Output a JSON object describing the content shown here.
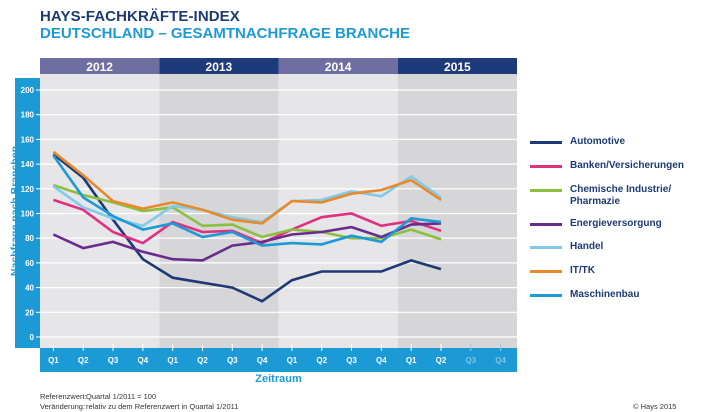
{
  "header": {
    "title": "HAYS-FACHKRÄFTE-INDEX",
    "subtitle": "DEUTSCHLAND – GESAMTNACHFRAGE BRANCHE"
  },
  "footer": {
    "ref_label": "Referenzwert:",
    "ref_value": "Quartal 1/2011 = 100",
    "change_label": "Veränderung:",
    "change_value": "relativ zu dem Referenzwert in Quartal 1/2011",
    "copyright": "© Hays 2015"
  },
  "chart_data": {
    "type": "line",
    "title": "HAYS-FACHKRÄFTE-INDEX — DEUTSCHLAND – GESAMTNACHFRAGE BRANCHE",
    "xlabel": "Zeitraum",
    "ylabel": "Nachfrage nach Branchen",
    "ylim": [
      0,
      200
    ],
    "yticks": [
      0,
      20,
      40,
      60,
      80,
      100,
      120,
      140,
      160,
      180,
      200
    ],
    "grid": true,
    "legend_position": "right",
    "years": [
      {
        "label": "2012",
        "color": "#6e6ea3"
      },
      {
        "label": "2013",
        "color": "#1d3a7a"
      },
      {
        "label": "2014",
        "color": "#6e6ea3"
      },
      {
        "label": "2015",
        "color": "#1d3a7a"
      }
    ],
    "categories": [
      "Q1",
      "Q2",
      "Q3",
      "Q4",
      "Q1",
      "Q2",
      "Q3",
      "Q4",
      "Q1",
      "Q2",
      "Q3",
      "Q4",
      "Q1",
      "Q2",
      "Q3",
      "Q4"
    ],
    "category_dimmed": [
      false,
      false,
      false,
      false,
      false,
      false,
      false,
      false,
      false,
      false,
      false,
      false,
      false,
      false,
      true,
      true
    ],
    "series": [
      {
        "name": "Automotive",
        "color": "#1d3a74",
        "values": [
          148,
          129,
          95,
          63,
          48,
          44,
          40,
          29,
          46,
          53,
          53,
          53,
          62,
          55,
          null,
          null
        ]
      },
      {
        "name": "Banken/Versicherungen",
        "color": "#e0307f",
        "values": [
          111,
          103,
          85,
          76,
          93,
          85,
          86,
          76,
          87,
          97,
          100,
          90,
          94,
          86,
          null,
          null
        ]
      },
      {
        "name": "Chemische Industrie/\nPharmazie",
        "color": "#8cbf3f",
        "values": [
          123,
          115,
          109,
          102,
          105,
          90,
          91,
          81,
          87,
          85,
          80,
          80,
          87,
          79,
          null,
          null
        ]
      },
      {
        "name": "Energieversorgung",
        "color": "#6a2c8c",
        "values": [
          83,
          72,
          77,
          69,
          63,
          62,
          74,
          77,
          83,
          85,
          89,
          81,
          91,
          92,
          null,
          null
        ]
      },
      {
        "name": "Handel",
        "color": "#7fcbe8",
        "values": [
          122,
          105,
          96,
          90,
          106,
          103,
          97,
          93,
          110,
          111,
          118,
          114,
          130,
          113,
          null,
          null
        ]
      },
      {
        "name": "IT/TK",
        "color": "#e8892a",
        "values": [
          150,
          131,
          110,
          104,
          109,
          103,
          95,
          92,
          110,
          109,
          116,
          119,
          127,
          111,
          null,
          null
        ]
      },
      {
        "name": "Maschinenbau",
        "color": "#1c9ad6",
        "values": [
          147,
          113,
          98,
          87,
          92,
          81,
          85,
          74,
          76,
          75,
          82,
          77,
          96,
          93,
          null,
          null
        ]
      }
    ]
  }
}
